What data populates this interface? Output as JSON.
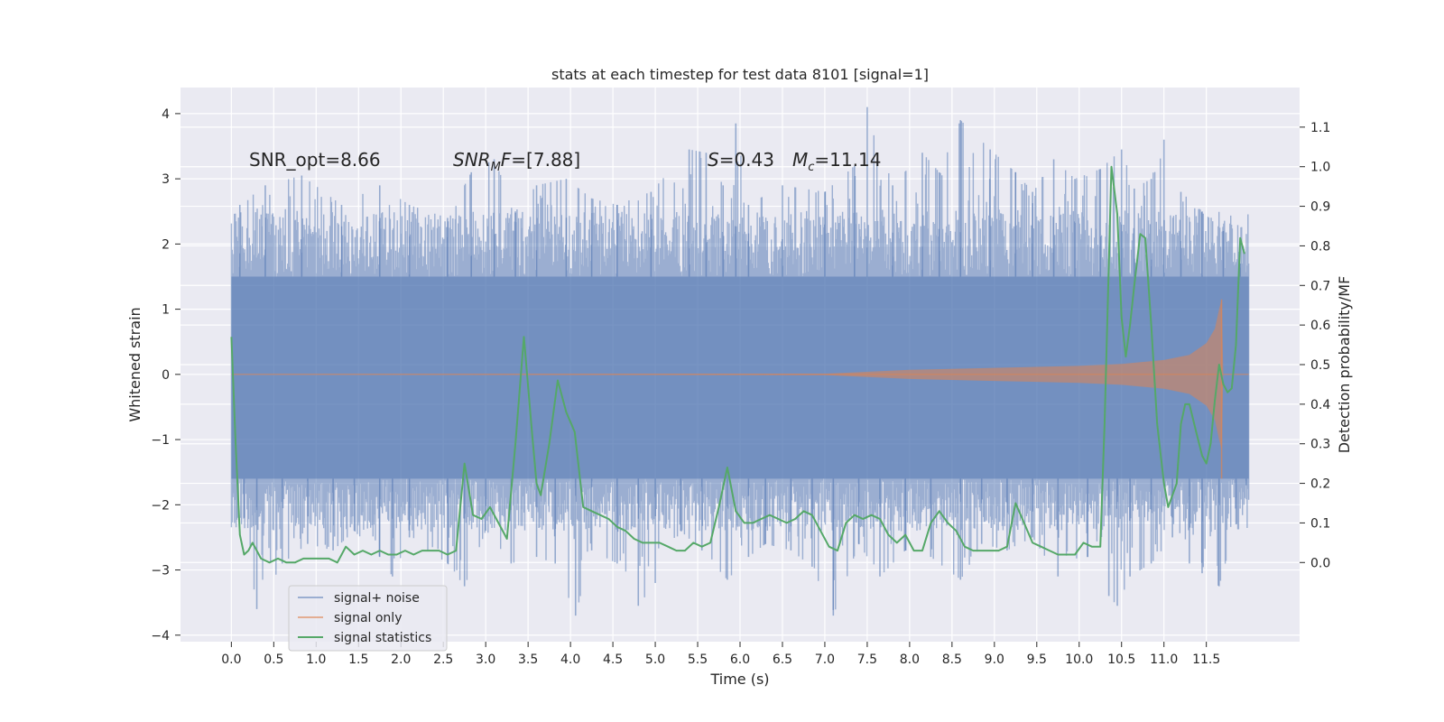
{
  "chart_data": {
    "type": "line",
    "title": "stats at each timestep for test data 8101 [signal=1]",
    "xlabel": "Time (s)",
    "ylabel": "Whitened strain",
    "ylabel_right": "Detection probability/MF",
    "xlim": [
      -0.6,
      12.6
    ],
    "ylim": [
      -4.1,
      4.4
    ],
    "ylim_right": [
      -0.2,
      1.2
    ],
    "x_ticks": [
      0.0,
      0.5,
      1.0,
      1.5,
      2.0,
      2.5,
      3.0,
      3.5,
      4.0,
      4.5,
      5.0,
      5.5,
      6.0,
      6.5,
      7.0,
      7.5,
      8.0,
      8.5,
      9.0,
      9.5,
      10.0,
      10.5,
      11.0,
      11.5
    ],
    "x_tick_labels": [
      "0.0",
      "0.5",
      "1.0",
      "1.5",
      "2.0",
      "2.5",
      "3.0",
      "3.5",
      "4.0",
      "4.5",
      "5.0",
      "5.5",
      "6.0",
      "6.5",
      "7.0",
      "7.5",
      "8.0",
      "8.5",
      "9.0",
      "9.5",
      "10.0",
      "10.5",
      "11.0",
      "11.5"
    ],
    "y_ticks": [
      -4,
      -3,
      -2,
      -1,
      0,
      1,
      2,
      3,
      4
    ],
    "y_tick_labels": [
      "−4",
      "−3",
      "−2",
      "−1",
      "0",
      "1",
      "2",
      "3",
      "4"
    ],
    "y_ticks_right": [
      0.0,
      0.1,
      0.2,
      0.3,
      0.4,
      0.5,
      0.6,
      0.7,
      0.8,
      0.9,
      1.0,
      1.1
    ],
    "y_tick_labels_right": [
      "0.0",
      "0.1",
      "0.2",
      "0.3",
      "0.4",
      "0.5",
      "0.6",
      "0.7",
      "0.8",
      "0.9",
      "1.0",
      "1.1"
    ],
    "grid": true,
    "legend_position": "lower-left",
    "colors": {
      "signal_noise": "#4c72b0",
      "signal_only": "#dd8452",
      "signal_statistics": "#55a868",
      "plot_bg": "#eaeaf2",
      "grid": "#ffffff"
    },
    "annotations": {
      "snr_opt": "SNR_opt=8.66",
      "snr_mf_name": "SNR",
      "snr_mf_sub": "M",
      "snr_mf_tail": "F",
      "snr_mf_value": "=[7.88]",
      "s_name": "S",
      "s_value": "=0.43",
      "mc_name": "M",
      "mc_sub": "c",
      "mc_value": "=11.14"
    },
    "series": [
      {
        "name": "signal+ noise",
        "axis": "left",
        "x_range": [
          0.0,
          12.0
        ],
        "envelope_upper_typical": 1.5,
        "envelope_lower_typical": -1.6,
        "upper_peaks": [
          [
            0.1,
            2.6
          ],
          [
            0.4,
            2.9
          ],
          [
            0.83,
            3.05
          ],
          [
            1.3,
            2.6
          ],
          [
            1.75,
            2.9
          ],
          [
            2.1,
            2.6
          ],
          [
            2.55,
            2.4
          ],
          [
            2.83,
            3.1
          ],
          [
            3.1,
            3.3
          ],
          [
            3.35,
            2.5
          ],
          [
            3.6,
            2.9
          ],
          [
            3.95,
            3.0
          ],
          [
            4.25,
            2.7
          ],
          [
            4.55,
            2.6
          ],
          [
            4.95,
            2.8
          ],
          [
            5.4,
            3.45
          ],
          [
            5.6,
            3.4
          ],
          [
            5.8,
            2.9
          ],
          [
            5.95,
            3.85
          ],
          [
            6.1,
            2.6
          ],
          [
            6.5,
            2.9
          ],
          [
            7.0,
            2.8
          ],
          [
            7.35,
            3.2
          ],
          [
            7.5,
            4.1
          ],
          [
            7.8,
            2.9
          ],
          [
            8.15,
            3.4
          ],
          [
            8.35,
            3.1
          ],
          [
            8.6,
            3.9
          ],
          [
            8.95,
            3.45
          ],
          [
            9.25,
            3.1
          ],
          [
            9.45,
            2.8
          ],
          [
            9.7,
            3.3
          ],
          [
            9.95,
            3.0
          ],
          [
            10.25,
            3.15
          ],
          [
            10.5,
            3.45
          ],
          [
            10.65,
            2.85
          ],
          [
            10.85,
            3.0
          ],
          [
            11.0,
            3.6
          ],
          [
            11.2,
            2.8
          ],
          [
            11.45,
            2.5
          ],
          [
            11.7,
            2.2
          ],
          [
            11.9,
            1.7
          ]
        ],
        "lower_peaks": [
          [
            0.15,
            -2.2
          ],
          [
            0.3,
            -3.6
          ],
          [
            0.6,
            -2.9
          ],
          [
            0.9,
            -2.6
          ],
          [
            1.2,
            -2.7
          ],
          [
            1.45,
            -2.4
          ],
          [
            1.75,
            -2.8
          ],
          [
            1.9,
            -3.1
          ],
          [
            2.1,
            -2.5
          ],
          [
            2.55,
            -2.9
          ],
          [
            2.75,
            -3.25
          ],
          [
            3.0,
            -2.4
          ],
          [
            3.3,
            -2.9
          ],
          [
            3.6,
            -2.8
          ],
          [
            3.82,
            -2.9
          ],
          [
            4.06,
            -3.7
          ],
          [
            4.25,
            -2.7
          ],
          [
            4.55,
            -2.9
          ],
          [
            4.8,
            -3.55
          ],
          [
            5.0,
            -3.2
          ],
          [
            5.3,
            -2.4
          ],
          [
            5.55,
            -2.7
          ],
          [
            5.85,
            -3.15
          ],
          [
            6.1,
            -2.8
          ],
          [
            6.3,
            -2.6
          ],
          [
            6.6,
            -2.7
          ],
          [
            6.85,
            -2.95
          ],
          [
            7.1,
            -3.7
          ],
          [
            7.4,
            -2.6
          ],
          [
            7.65,
            -3.1
          ],
          [
            7.95,
            -2.7
          ],
          [
            8.25,
            -2.8
          ],
          [
            8.6,
            -3.15
          ],
          [
            8.85,
            -2.6
          ],
          [
            9.15,
            -2.7
          ],
          [
            9.45,
            -2.5
          ],
          [
            9.75,
            -3.1
          ],
          [
            10.1,
            -2.8
          ],
          [
            10.35,
            -3.4
          ],
          [
            10.45,
            -3.55
          ],
          [
            10.6,
            -3.1
          ],
          [
            10.85,
            -2.9
          ],
          [
            11.1,
            -2.5
          ],
          [
            11.3,
            -2.9
          ],
          [
            11.45,
            -3.05
          ],
          [
            11.65,
            -3.25
          ],
          [
            11.85,
            -2.3
          ],
          [
            11.97,
            -1.7
          ]
        ]
      },
      {
        "name": "signal only",
        "axis": "left",
        "description_of_shape": "chirp",
        "amplitude_x": [
          0.0,
          7.0,
          8.0,
          9.0,
          10.0,
          10.5,
          11.0,
          11.3,
          11.5,
          11.6,
          11.65,
          11.68,
          11.7,
          12.0
        ],
        "amplitude_y": [
          0.0,
          0.01,
          0.07,
          0.1,
          0.13,
          0.16,
          0.22,
          0.3,
          0.48,
          0.7,
          1.0,
          1.15,
          0.0,
          0.0
        ]
      },
      {
        "name": "signal statistics",
        "axis": "right",
        "x": [
          0.0,
          0.05,
          0.1,
          0.15,
          0.2,
          0.25,
          0.35,
          0.45,
          0.55,
          0.65,
          0.75,
          0.85,
          0.95,
          1.05,
          1.15,
          1.25,
          1.35,
          1.45,
          1.55,
          1.65,
          1.75,
          1.85,
          1.95,
          2.05,
          2.15,
          2.25,
          2.35,
          2.45,
          2.55,
          2.65,
          2.75,
          2.85,
          2.95,
          3.05,
          3.15,
          3.25,
          3.35,
          3.45,
          3.55,
          3.6,
          3.65,
          3.75,
          3.85,
          3.95,
          4.05,
          4.15,
          4.25,
          4.35,
          4.45,
          4.55,
          4.65,
          4.75,
          4.85,
          4.95,
          5.05,
          5.15,
          5.25,
          5.35,
          5.45,
          5.55,
          5.65,
          5.75,
          5.85,
          5.95,
          6.05,
          6.15,
          6.25,
          6.35,
          6.45,
          6.55,
          6.65,
          6.75,
          6.85,
          6.95,
          7.05,
          7.15,
          7.25,
          7.35,
          7.45,
          7.55,
          7.65,
          7.75,
          7.85,
          7.95,
          8.05,
          8.15,
          8.25,
          8.35,
          8.45,
          8.55,
          8.65,
          8.75,
          8.85,
          8.95,
          9.05,
          9.15,
          9.25,
          9.35,
          9.45,
          9.55,
          9.65,
          9.75,
          9.85,
          9.95,
          10.05,
          10.15,
          10.25,
          10.3,
          10.38,
          10.45,
          10.5,
          10.55,
          10.6,
          10.65,
          10.72,
          10.78,
          10.85,
          10.92,
          11.0,
          11.05,
          11.1,
          11.15,
          11.2,
          11.25,
          11.3,
          11.38,
          11.45,
          11.5,
          11.55,
          11.6,
          11.65,
          11.7,
          11.75,
          11.8,
          11.85,
          11.9,
          11.95
        ],
        "values": [
          0.57,
          0.3,
          0.07,
          0.02,
          0.03,
          0.05,
          0.01,
          0.0,
          0.01,
          0.0,
          0.0,
          0.01,
          0.01,
          0.01,
          0.01,
          0.0,
          0.04,
          0.02,
          0.03,
          0.02,
          0.03,
          0.02,
          0.02,
          0.03,
          0.02,
          0.03,
          0.03,
          0.03,
          0.02,
          0.03,
          0.25,
          0.12,
          0.11,
          0.14,
          0.1,
          0.06,
          0.3,
          0.57,
          0.32,
          0.2,
          0.17,
          0.3,
          0.46,
          0.38,
          0.33,
          0.14,
          0.13,
          0.12,
          0.11,
          0.09,
          0.08,
          0.06,
          0.05,
          0.05,
          0.05,
          0.04,
          0.03,
          0.03,
          0.05,
          0.04,
          0.05,
          0.14,
          0.24,
          0.13,
          0.1,
          0.1,
          0.11,
          0.12,
          0.11,
          0.1,
          0.11,
          0.13,
          0.12,
          0.08,
          0.04,
          0.03,
          0.1,
          0.12,
          0.11,
          0.12,
          0.11,
          0.07,
          0.05,
          0.07,
          0.03,
          0.03,
          0.1,
          0.13,
          0.1,
          0.08,
          0.04,
          0.03,
          0.03,
          0.03,
          0.03,
          0.04,
          0.15,
          0.1,
          0.05,
          0.04,
          0.03,
          0.02,
          0.02,
          0.02,
          0.05,
          0.04,
          0.04,
          0.35,
          1.0,
          0.88,
          0.62,
          0.52,
          0.6,
          0.7,
          0.83,
          0.82,
          0.6,
          0.35,
          0.2,
          0.14,
          0.17,
          0.2,
          0.35,
          0.4,
          0.4,
          0.33,
          0.27,
          0.25,
          0.3,
          0.41,
          0.5,
          0.45,
          0.43,
          0.44,
          0.55,
          0.82,
          0.78
        ]
      }
    ]
  }
}
